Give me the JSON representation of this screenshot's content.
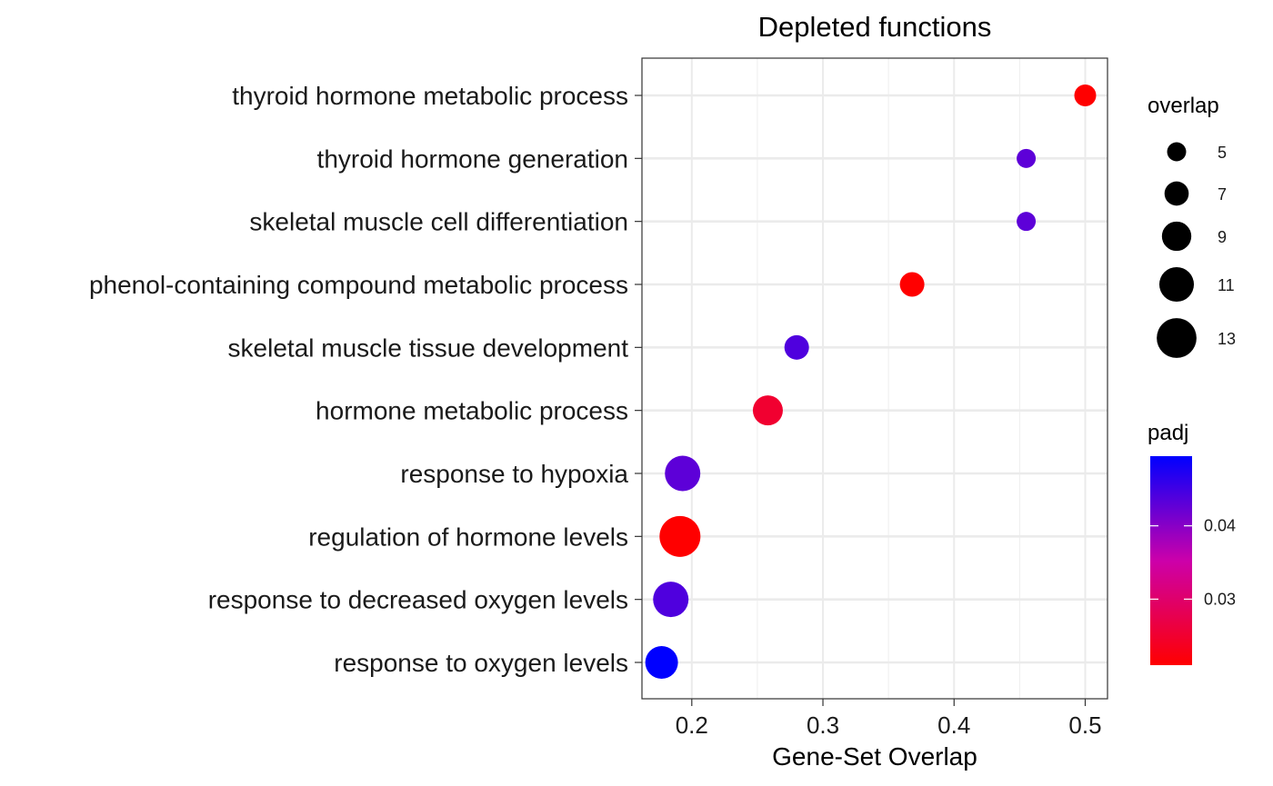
{
  "chart_data": {
    "type": "scatter",
    "title": "Depleted functions",
    "xlabel": "Gene-Set Overlap",
    "ylabel": "",
    "xlim": [
      0.162,
      0.517
    ],
    "xticks": [
      0.2,
      0.3,
      0.4,
      0.5
    ],
    "xtick_labels": [
      "0.2",
      "0.3",
      "0.4",
      "0.5"
    ],
    "grid": true,
    "categories": [
      "thyroid hormone metabolic process",
      "thyroid hormone generation",
      "skeletal muscle cell differentiation",
      "phenol-containing compound metabolic process",
      "skeletal muscle tissue development",
      "hormone metabolic process",
      "response to hypoxia",
      "regulation of hormone levels",
      "response to decreased oxygen levels",
      "response to oxygen levels"
    ],
    "points": [
      {
        "category": "thyroid hormone metabolic process",
        "x": 0.5,
        "overlap": 6,
        "padj": 0.021
      },
      {
        "category": "thyroid hormone generation",
        "x": 0.455,
        "overlap": 5,
        "padj": 0.043
      },
      {
        "category": "skeletal muscle cell differentiation",
        "x": 0.455,
        "overlap": 5,
        "padj": 0.043
      },
      {
        "category": "phenol-containing compound metabolic process",
        "x": 0.368,
        "overlap": 7,
        "padj": 0.021
      },
      {
        "category": "skeletal muscle tissue development",
        "x": 0.28,
        "overlap": 7,
        "padj": 0.044
      },
      {
        "category": "hormone metabolic process",
        "x": 0.258,
        "overlap": 9,
        "padj": 0.025
      },
      {
        "category": "response to hypoxia",
        "x": 0.193,
        "overlap": 11,
        "padj": 0.043
      },
      {
        "category": "regulation of hormone levels",
        "x": 0.191,
        "overlap": 13,
        "padj": 0.021
      },
      {
        "category": "response to decreased oxygen levels",
        "x": 0.184,
        "overlap": 11,
        "padj": 0.044
      },
      {
        "category": "response to oxygen levels",
        "x": 0.177,
        "overlap": 10,
        "padj": 0.0495
      }
    ],
    "size_legend": {
      "title": "overlap",
      "values": [
        5,
        7,
        9,
        11,
        13
      ],
      "labels": [
        "5",
        "7",
        "9",
        "11",
        "13"
      ]
    },
    "color_legend": {
      "title": "padj",
      "range": [
        0.021,
        0.0495
      ],
      "ticks": [
        0.03,
        0.04
      ],
      "tick_labels": [
        "0.03",
        "0.04"
      ],
      "low_color": "#ff0000",
      "high_color": "#0000ff"
    },
    "legend_position": "right"
  }
}
